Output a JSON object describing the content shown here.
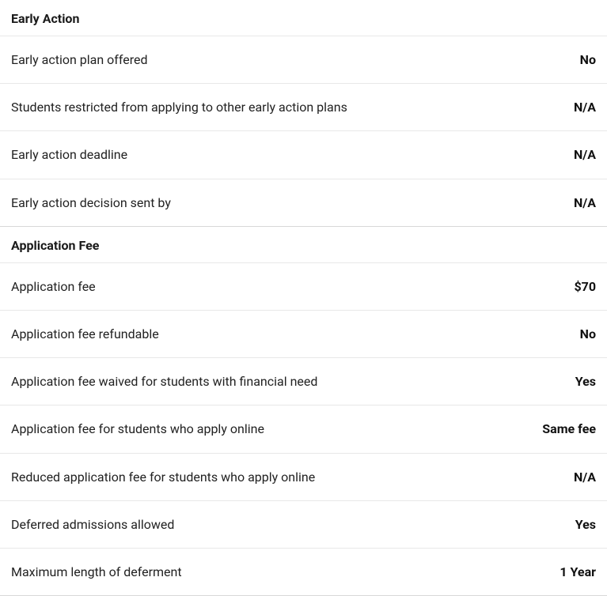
{
  "sections": [
    {
      "title": "Early Action",
      "rows": [
        {
          "label": "Early action plan offered",
          "value": "No"
        },
        {
          "label": "Students restricted from applying to other early action plans",
          "value": "N/A"
        },
        {
          "label": "Early action deadline",
          "value": "N/A"
        },
        {
          "label": "Early action decision sent by",
          "value": "N/A"
        }
      ]
    },
    {
      "title": "Application Fee",
      "rows": [
        {
          "label": "Application fee",
          "value": "$70"
        },
        {
          "label": "Application fee refundable",
          "value": "No"
        },
        {
          "label": "Application fee waived for students with financial need",
          "value": "Yes"
        },
        {
          "label": "Application fee for students who apply online",
          "value": "Same fee"
        },
        {
          "label": "Reduced application fee for students who apply online",
          "value": "N/A"
        },
        {
          "label": "Deferred admissions allowed",
          "value": "Yes"
        },
        {
          "label": "Maximum length of deferment",
          "value": "1 Year"
        }
      ]
    }
  ],
  "colors": {
    "background": "#ffffff",
    "text_primary": "#1a1a1a",
    "text_label": "#222222",
    "divider_light": "#e8e8e8",
    "divider_section": "#d8d8d8"
  },
  "typography": {
    "header_fontsize": 16,
    "header_weight": 700,
    "label_fontsize": 16,
    "label_weight": 400,
    "value_fontsize": 16,
    "value_weight": 700,
    "font_family": "system-ui"
  }
}
